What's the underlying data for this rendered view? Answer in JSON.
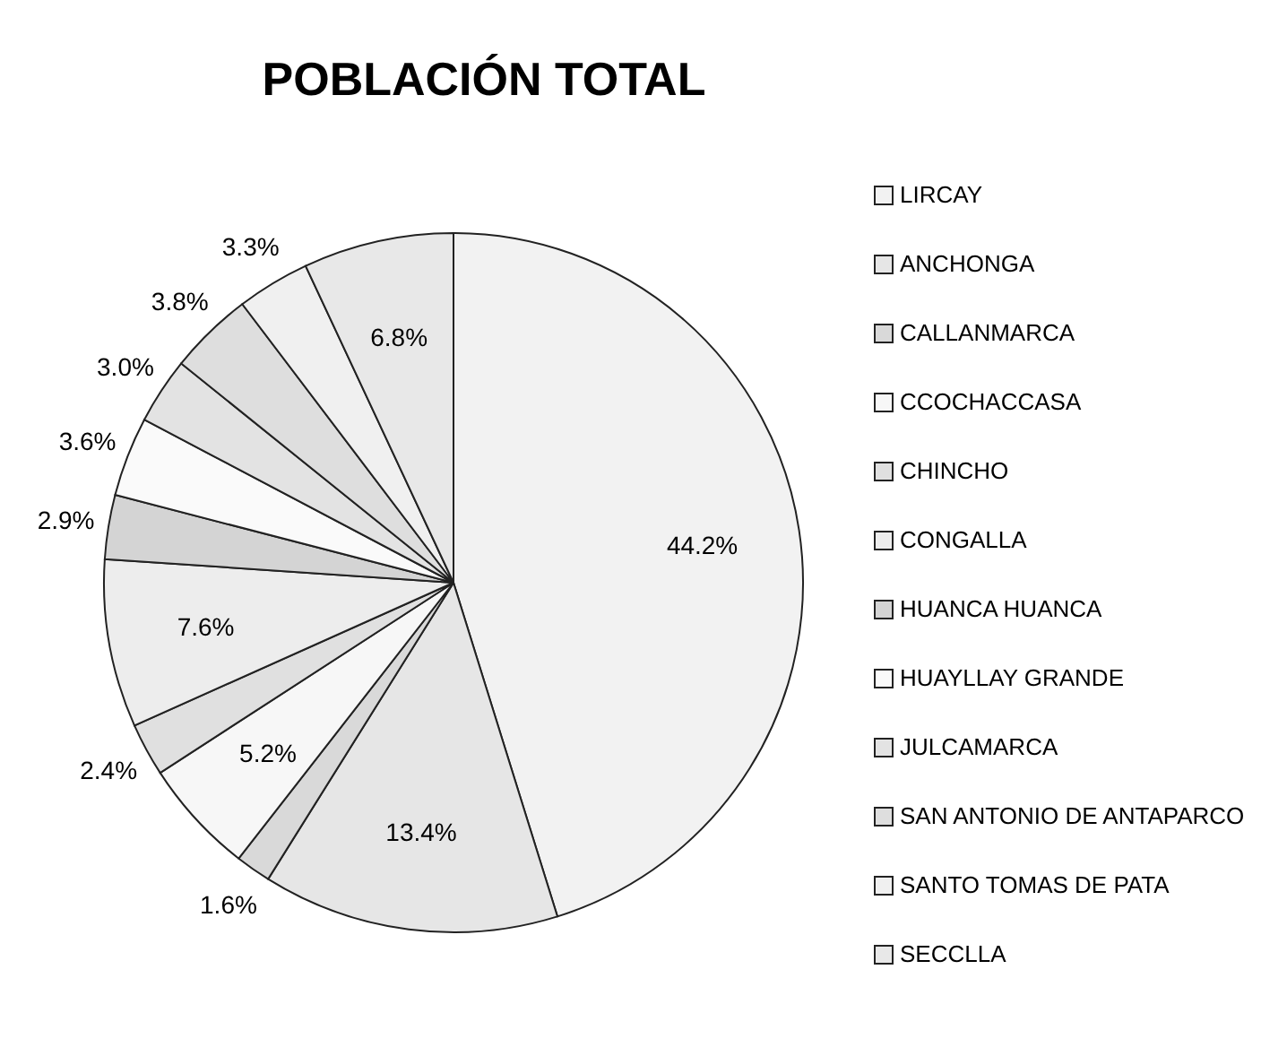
{
  "chart_data": {
    "type": "pie",
    "title": "POBLACIÓN TOTAL",
    "categories": [
      "LIRCAY",
      "ANCHONGA",
      "CALLANMARCA",
      "CCOCHACCASA",
      "CHINCHO",
      "CONGALLA",
      "HUANCA HUANCA",
      "HUAYLLAY GRANDE",
      "JULCAMARCA",
      "SAN ANTONIO DE ANTAPARCO",
      "SANTO TOMAS DE PATA",
      "SECCLLA"
    ],
    "values": [
      44.2,
      13.4,
      1.6,
      5.2,
      2.4,
      7.6,
      2.9,
      3.6,
      3.0,
      3.8,
      3.3,
      6.8
    ],
    "colors": [
      "#f2f2f2",
      "#e6e6e6",
      "#d9d9d9",
      "#f7f7f7",
      "#e0e0e0",
      "#ededed",
      "#d4d4d4",
      "#fafafa",
      "#e3e3e3",
      "#dedede",
      "#f0f0f0",
      "#e8e8e8"
    ],
    "value_labels": [
      "44.2%",
      "13.4%",
      "1.6%",
      "5.2%",
      "2.4%",
      "7.6%",
      "2.9%",
      "3.6%",
      "3.0%",
      "3.8%",
      "3.3%",
      "6.8%"
    ],
    "legend": "right"
  }
}
